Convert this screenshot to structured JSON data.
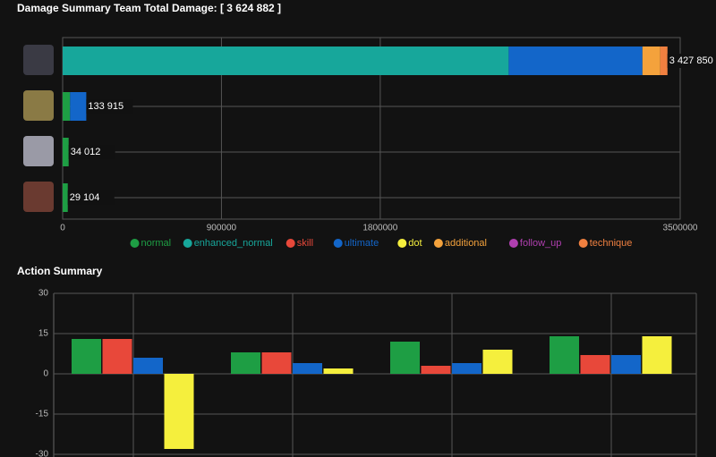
{
  "chart_data": [
    {
      "type": "stacked-barh",
      "title": "Damage Summary Team Total Damage: [ 3 624 882 ]",
      "categories": [
        null,
        null,
        null,
        null
      ],
      "series": [
        {
          "name": "normal",
          "color": "#1e9e44",
          "values": [
            0,
            42000,
            34012,
            29104
          ]
        },
        {
          "name": "enhanced_normal",
          "color": "#17a79b",
          "values": [
            2528000,
            0,
            0,
            0
          ]
        },
        {
          "name": "skill",
          "color": "#e8483a",
          "values": [
            0,
            0,
            0,
            0
          ]
        },
        {
          "name": "ultimate",
          "color": "#1366c9",
          "values": [
            758000,
            91915,
            0,
            0
          ]
        },
        {
          "name": "dot",
          "color": "#f5ef3d",
          "values": [
            0,
            0,
            0,
            0
          ]
        },
        {
          "name": "additional",
          "color": "#f4a23c",
          "values": [
            101000,
            0,
            0,
            0
          ]
        },
        {
          "name": "follow_up",
          "color": "#b03fb0",
          "values": [
            0,
            0,
            0,
            0
          ]
        },
        {
          "name": "technique",
          "color": "#f08040",
          "values": [
            40850,
            0,
            0,
            0
          ]
        }
      ],
      "totals": [
        3427850,
        133915,
        34012,
        29104
      ],
      "total_labels": [
        "3 427 850",
        "133 915",
        "34 012",
        "29 104"
      ],
      "xlim": [
        0,
        3500000
      ],
      "xticks": [
        0,
        900000,
        1800000,
        3500000
      ],
      "grid": true,
      "legend": "bottom"
    },
    {
      "type": "bar",
      "title": "Action Summary",
      "categories": [
        null,
        null,
        null,
        null
      ],
      "series": [
        {
          "color": "#1e9e44",
          "values": [
            13,
            8,
            12,
            14
          ]
        },
        {
          "color": "#e8483a",
          "values": [
            13,
            8,
            3,
            7
          ]
        },
        {
          "color": "#1366c9",
          "values": [
            6,
            4,
            4,
            7
          ]
        },
        {
          "color": "#f5ef3d",
          "values": [
            -28,
            2,
            9,
            14
          ]
        }
      ],
      "ylim": [
        -30,
        30
      ],
      "yticks": [
        30,
        15,
        0,
        -15,
        -30
      ],
      "grid": true
    }
  ]
}
